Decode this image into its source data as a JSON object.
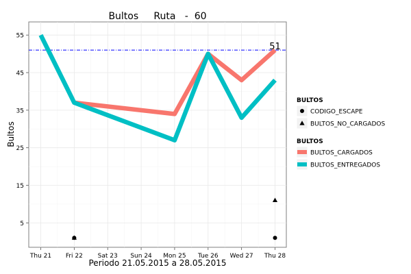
{
  "chart_data": {
    "type": "line",
    "title": "Bultos     Ruta   -  60",
    "xlabel": "Periodo  21.05.2015  a  28.05.2015",
    "ylabel": "Bultos",
    "categories": [
      "Thu 21",
      "Fri 22",
      "Sat 23",
      "Sun 24",
      "Mon 25",
      "Tue 26",
      "Wed 27",
      "Thu 28"
    ],
    "x": [
      0,
      1,
      4,
      5,
      6,
      7
    ],
    "yticks": [
      5,
      15,
      25,
      35,
      45,
      55
    ],
    "ylim": [
      -1.5,
      58.5
    ],
    "grid": true,
    "series": [
      {
        "name": "BULTOS_CARGADOS",
        "style": "line",
        "color": "#F8766D",
        "values": [
          null,
          37,
          34,
          50,
          43,
          51
        ]
      },
      {
        "name": "BULTOS_ENTREGADOS",
        "style": "line",
        "color": "#00BFC4",
        "values": [
          55,
          37,
          27,
          50,
          33,
          43
        ]
      },
      {
        "name": "CODIGO_ESCAPE",
        "style": "point",
        "shape": "circle",
        "color": "#000000",
        "values": [
          null,
          1,
          null,
          null,
          null,
          1
        ]
      },
      {
        "name": "BULTOS_NO_CARGADOS",
        "style": "point",
        "shape": "triangle",
        "color": "#000000",
        "values": [
          null,
          1,
          null,
          null,
          null,
          11
        ]
      }
    ],
    "reference_line": {
      "y": 51,
      "label": "51",
      "color": "#0000FF"
    },
    "legend_position": "right",
    "legends": [
      {
        "title": "BULTOS",
        "items": [
          "CODIGO_ESCAPE",
          "BULTOS_NO_CARGADOS"
        ]
      },
      {
        "title": "BULTOS",
        "items": [
          "BULTOS_CARGADOS",
          "BULTOS_ENTREGADOS"
        ]
      }
    ]
  }
}
